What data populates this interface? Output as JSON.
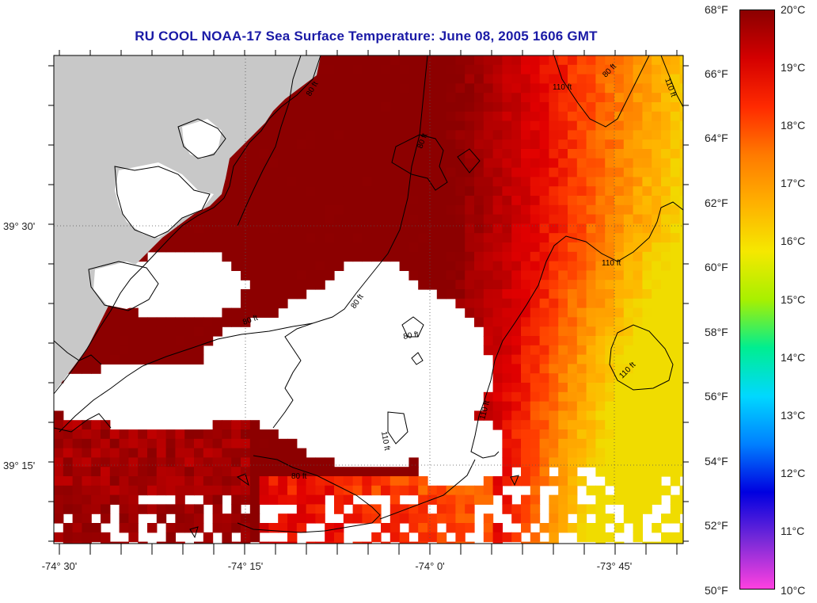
{
  "title": "RU COOL  NOAA-17  Sea Surface Temperature:  June 08, 2005 1606 GMT",
  "colors": {
    "land": "#c8c8c8",
    "no_data": "#ffffff",
    "title": "#1a1aa6",
    "contour": "#000000"
  },
  "map": {
    "lon_ticks": [
      "-74° 30'",
      "-74° 15'",
      "-74° 0'",
      "-73° 45'"
    ],
    "lat_ticks": [
      "39° 30'",
      "39° 15'"
    ],
    "contour_labels": [
      "80 ft",
      "80 ft",
      "80 ft",
      "80 ft",
      "80 ft",
      "110 ft",
      "110 ft",
      "110 ft",
      "110 ft",
      "110 ft",
      "110 ft",
      "80 ft",
      "80 ft"
    ]
  },
  "colorbar": {
    "fahrenheit": [
      "68°F",
      "66°F",
      "64°F",
      "62°F",
      "60°F",
      "58°F",
      "56°F",
      "54°F",
      "52°F",
      "50°F"
    ],
    "celsius": [
      "20°C",
      "19°C",
      "18°C",
      "17°C",
      "16°C",
      "15°C",
      "14°C",
      "13°C",
      "12°C",
      "11°C",
      "10°C"
    ],
    "gradient": [
      "#8b0000",
      "#d40000",
      "#ff2a00",
      "#ff7a00",
      "#ffb000",
      "#f5e800",
      "#a8f000",
      "#00ee90",
      "#00d8ff",
      "#0080ff",
      "#0000e0",
      "#7a2ad8",
      "#ff40e0"
    ]
  }
}
